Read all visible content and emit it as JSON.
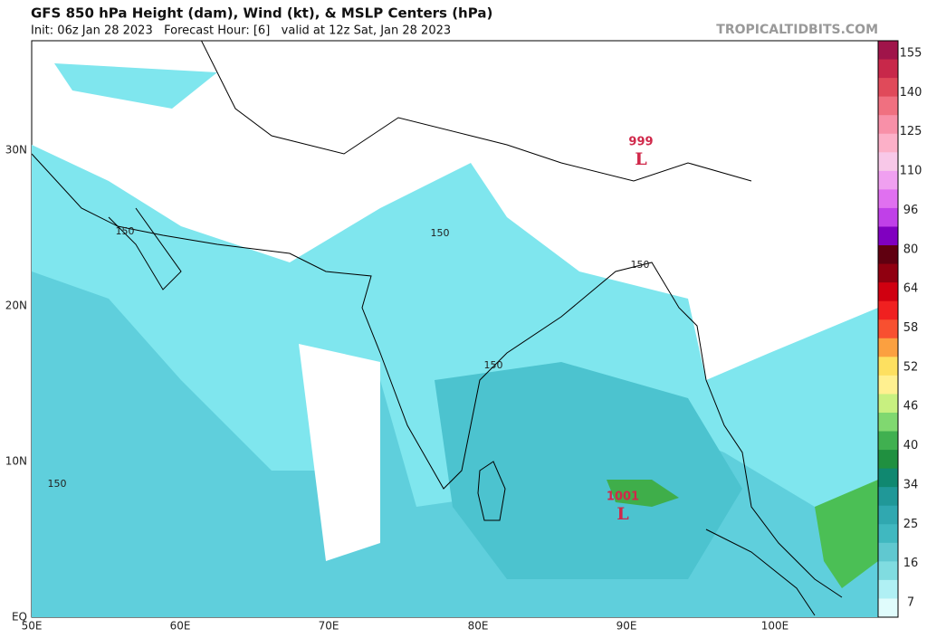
{
  "header": {
    "title": "GFS 850 hPa Height (dam), Wind (kt), & MSLP Centers (hPa)",
    "subtitle": "Init: 06z Jan 28 2023   Forecast Hour: [6]   valid at 12z Sat, Jan 28 2023",
    "watermark": "TROPICALTIDBITS.COM"
  },
  "map": {
    "lat_labels": [
      "30N",
      "20N",
      "10N",
      "EQ"
    ],
    "lon_labels": [
      "50E",
      "60E",
      "70E",
      "80E",
      "90E",
      "100E"
    ],
    "contour_labels": [
      "150",
      "150",
      "150",
      "150",
      "150"
    ],
    "lows": [
      {
        "pressure": "999",
        "symbol": "L"
      },
      {
        "pressure": "1001",
        "symbol": "L"
      }
    ]
  },
  "colorbar": {
    "labels": [
      155,
      140,
      125,
      110,
      96,
      80,
      64,
      58,
      52,
      46,
      40,
      34,
      25,
      16,
      7
    ]
  }
}
